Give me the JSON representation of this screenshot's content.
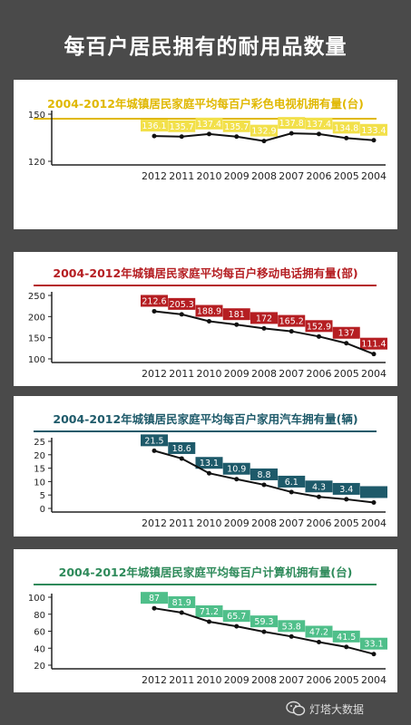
{
  "page": {
    "title": "每百户居民拥有的耐用品数量"
  },
  "footer": {
    "brand": "灯塔大数据"
  },
  "colors": {
    "background": "#4a4a4a",
    "panel": "#ffffff"
  },
  "chart_data": [
    {
      "type": "line",
      "title": "2004-2012年城镇居民家庭平均每百户彩色电视机拥有量(台)",
      "title_color": "#e0b800",
      "label_bg": "#f2e04a",
      "label_text": "#ffffff",
      "categories": [
        "2012",
        "2011",
        "2010",
        "2009",
        "2008",
        "2007",
        "2006",
        "2005",
        "2004"
      ],
      "values": [
        136.1,
        135.7,
        137.4,
        135.7,
        132.9,
        137.8,
        137.4,
        134.8,
        133.4
      ],
      "value_labels": [
        "136.1",
        "135.7",
        "137.4",
        "135.7",
        "132.9",
        "137.8",
        "137.4",
        "134.8",
        "133.4"
      ],
      "yticks": [
        "150",
        "120"
      ],
      "ylim": [
        120,
        150
      ],
      "grid": false
    },
    {
      "type": "line",
      "title": "2004-2012年城镇居民家庭平均每百户移动电话拥有量(部)",
      "title_color": "#b51e22",
      "label_bg": "#b51e22",
      "label_text": "#ffffff",
      "categories": [
        "2012",
        "2011",
        "2010",
        "2009",
        "2008",
        "2007",
        "2006",
        "2005",
        "2004"
      ],
      "values": [
        212.6,
        205.3,
        188.9,
        181,
        172,
        165.2,
        152.9,
        137,
        111.4
      ],
      "value_labels": [
        "212.6",
        "205.3",
        "188.9",
        "181",
        "172",
        "165.2",
        "152.9",
        "137",
        "111.4"
      ],
      "yticks": [
        "250",
        "200",
        "150",
        "100"
      ],
      "ylim": [
        100,
        250
      ],
      "grid": false
    },
    {
      "type": "line",
      "title": "2004-2012年城镇居民家庭平均每百户家用汽车拥有量(辆)",
      "title_color": "#1e5a6a",
      "label_bg": "#1e5a6a",
      "label_text": "#ffffff",
      "categories": [
        "2012",
        "2011",
        "2010",
        "2009",
        "2008",
        "2007",
        "2006",
        "2005",
        "2004"
      ],
      "values": [
        21.5,
        18.6,
        13.1,
        10.9,
        8.8,
        6.1,
        4.3,
        3.4,
        2.2
      ],
      "value_labels": [
        "21.5",
        "18.6",
        "13.1",
        "10.9",
        "8.8",
        "6.1",
        "4.3",
        "3.4",
        ""
      ],
      "yticks": [
        "25",
        "20",
        "15",
        "10",
        "5",
        "0"
      ],
      "ylim": [
        0,
        25
      ],
      "grid": false
    },
    {
      "type": "line",
      "title": "2004-2012年城镇居民家庭平均每百户计算机拥有量(台)",
      "title_color": "#2e8a5a",
      "label_bg": "#4fbf8a",
      "label_text": "#ffffff",
      "categories": [
        "2012",
        "2011",
        "2010",
        "2009",
        "2008",
        "2007",
        "2006",
        "2005",
        "2004"
      ],
      "values": [
        87,
        81.9,
        71.2,
        65.7,
        59.3,
        53.8,
        47.2,
        41.5,
        33.1
      ],
      "value_labels": [
        "87",
        "81.9",
        "71.2",
        "65.7",
        "59.3",
        "53.8",
        "47.2",
        "41.5",
        "33.1"
      ],
      "yticks": [
        "100",
        "80",
        "60",
        "40",
        "20"
      ],
      "ylim": [
        20,
        100
      ],
      "grid": false
    }
  ]
}
